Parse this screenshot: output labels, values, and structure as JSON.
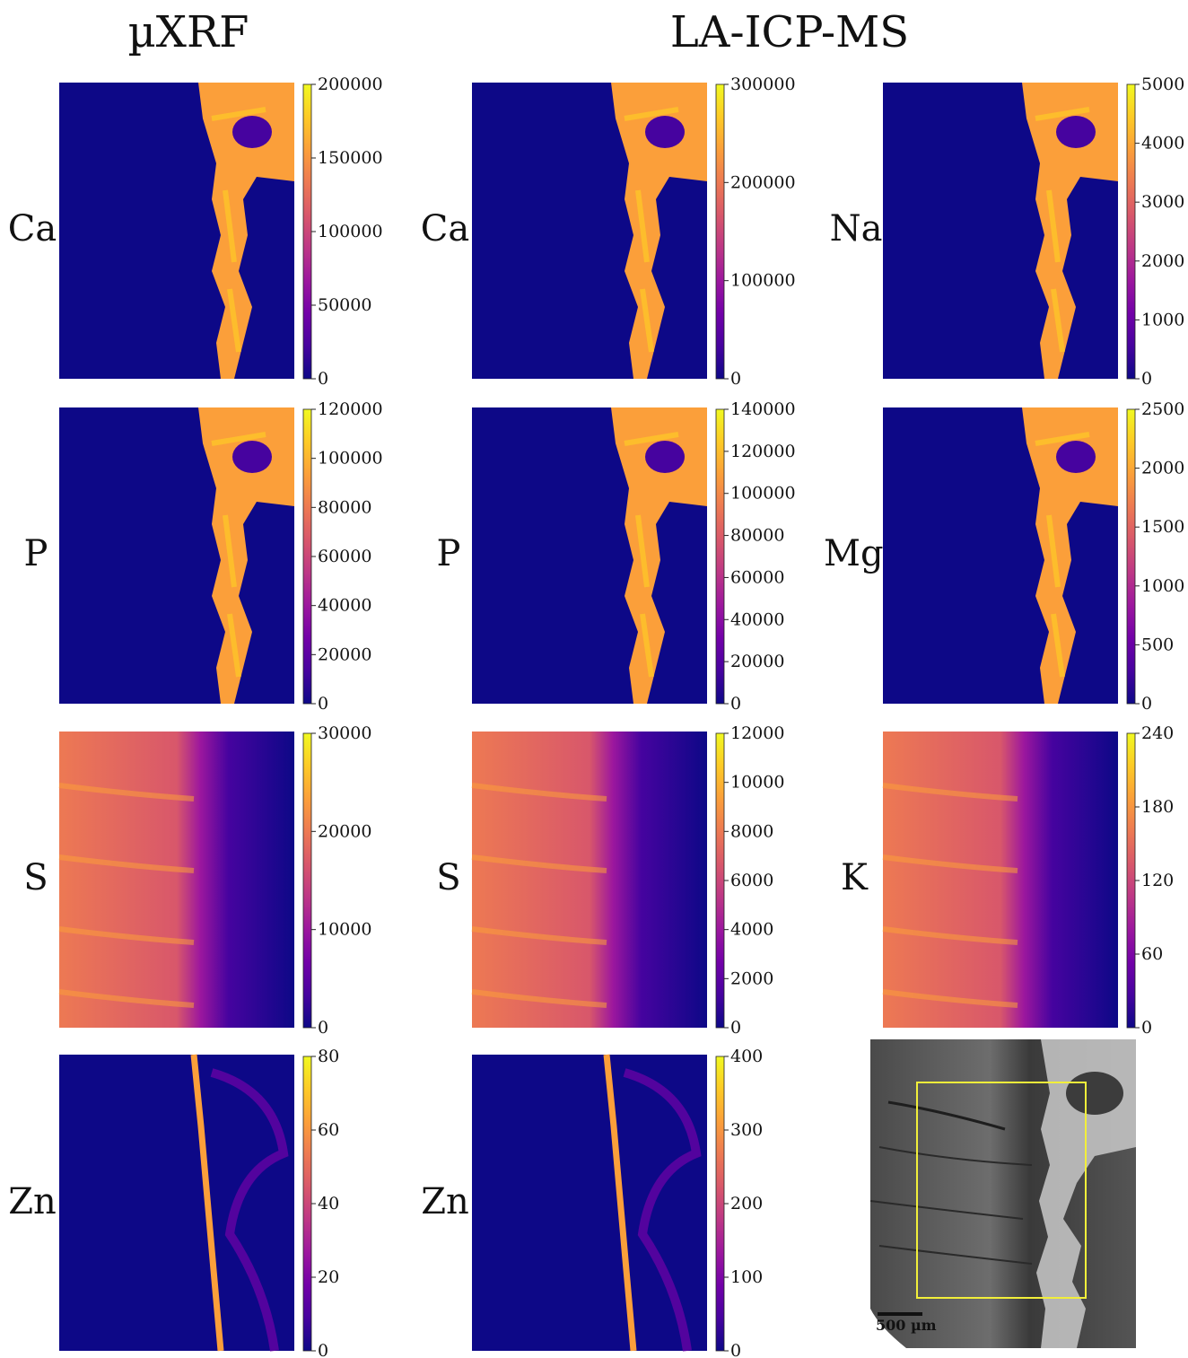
{
  "headings": {
    "uxrf": "µXRF",
    "la_icp_ms": "LA-ICP-MS"
  },
  "colormap": [
    "#0d0887",
    "#46039f",
    "#7201a8",
    "#9c179e",
    "#bd3786",
    "#d8576b",
    "#ed7953",
    "#fb9f3a",
    "#fdca26",
    "#f0f921"
  ],
  "panels": [
    {
      "id": "xrf-ca",
      "label": "Ca",
      "pattern": "bone",
      "ticks": [
        "200000",
        "150000",
        "100000",
        "50000",
        "0"
      ]
    },
    {
      "id": "la-ca",
      "label": "Ca",
      "pattern": "bone",
      "ticks": [
        "300000",
        "200000",
        "100000",
        "0"
      ]
    },
    {
      "id": "la-na",
      "label": "Na",
      "pattern": "bone",
      "ticks": [
        "5000",
        "4000",
        "3000",
        "2000",
        "1000",
        "0"
      ]
    },
    {
      "id": "xrf-p",
      "label": "P",
      "pattern": "bone",
      "ticks": [
        "120000",
        "100000",
        "80000",
        "60000",
        "40000",
        "20000",
        "0"
      ]
    },
    {
      "id": "la-p",
      "label": "P",
      "pattern": "bone",
      "ticks": [
        "140000",
        "120000",
        "100000",
        "80000",
        "60000",
        "40000",
        "20000",
        "0"
      ]
    },
    {
      "id": "la-mg",
      "label": "Mg",
      "pattern": "bone",
      "ticks": [
        "2500",
        "2000",
        "1500",
        "1000",
        "500",
        "0"
      ]
    },
    {
      "id": "xrf-s",
      "label": "S",
      "pattern": "soft",
      "ticks": [
        "30000",
        "20000",
        "10000",
        "0"
      ]
    },
    {
      "id": "la-s",
      "label": "S",
      "pattern": "soft",
      "ticks": [
        "12000",
        "10000",
        "8000",
        "6000",
        "4000",
        "2000",
        "0"
      ]
    },
    {
      "id": "la-k",
      "label": "K",
      "pattern": "soft",
      "ticks": [
        "240",
        "180",
        "120",
        "60",
        "0"
      ]
    },
    {
      "id": "xrf-zn",
      "label": "Zn",
      "pattern": "line",
      "ticks": [
        "80",
        "60",
        "40",
        "20",
        "0"
      ]
    },
    {
      "id": "la-zn",
      "label": "Zn",
      "pattern": "line",
      "ticks": [
        "400",
        "300",
        "200",
        "100",
        "0"
      ]
    }
  ],
  "micrograph": {
    "scale_label": "500 µm",
    "roi_color": "#f2ef3a"
  }
}
